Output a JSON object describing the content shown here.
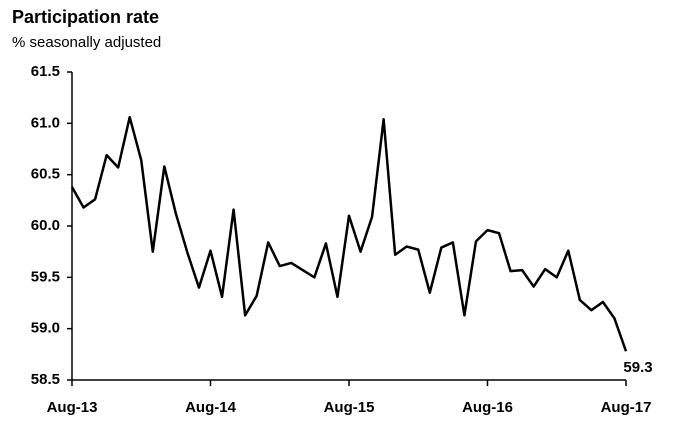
{
  "chart_data": {
    "type": "line",
    "title": "Participation rate",
    "subtitle": "% seasonally adjusted",
    "categories": [
      "Aug-13",
      null,
      null,
      null,
      null,
      null,
      null,
      null,
      null,
      null,
      null,
      null,
      "Aug-14",
      null,
      null,
      null,
      null,
      null,
      null,
      null,
      null,
      null,
      null,
      null,
      "Aug-15",
      null,
      null,
      null,
      null,
      null,
      null,
      null,
      null,
      null,
      null,
      null,
      "Aug-16",
      null,
      null,
      null,
      null,
      null,
      null,
      null,
      null,
      null,
      null,
      null,
      "Aug-17"
    ],
    "series": [
      {
        "name": "Participation rate",
        "color": "#000000",
        "values": [
          60.38,
          60.18,
          60.26,
          60.69,
          60.57,
          61.06,
          60.64,
          59.75,
          60.58,
          60.12,
          59.74,
          59.4,
          59.76,
          59.31,
          60.16,
          59.13,
          59.32,
          59.84,
          59.61,
          59.64,
          59.57,
          59.5,
          59.83,
          59.31,
          60.1,
          59.75,
          60.09,
          61.04,
          59.72,
          59.8,
          59.77,
          59.35,
          59.79,
          59.84,
          59.13,
          59.85,
          59.96,
          59.93,
          59.56,
          59.57,
          59.41,
          59.58,
          59.5,
          59.76,
          59.28,
          59.18,
          59.26,
          59.1,
          58.78
        ]
      }
    ],
    "annotation": "59.3",
    "ylim": [
      58.5,
      61.5
    ],
    "yticks": [
      58.5,
      {
        "value": 59.0,
        "label": "59.0"
      },
      59.5,
      {
        "value": 60.0,
        "label": "60.0"
      },
      60.5,
      {
        "value": 61.0,
        "label": "61.0"
      },
      61.5
    ],
    "grid": false
  }
}
